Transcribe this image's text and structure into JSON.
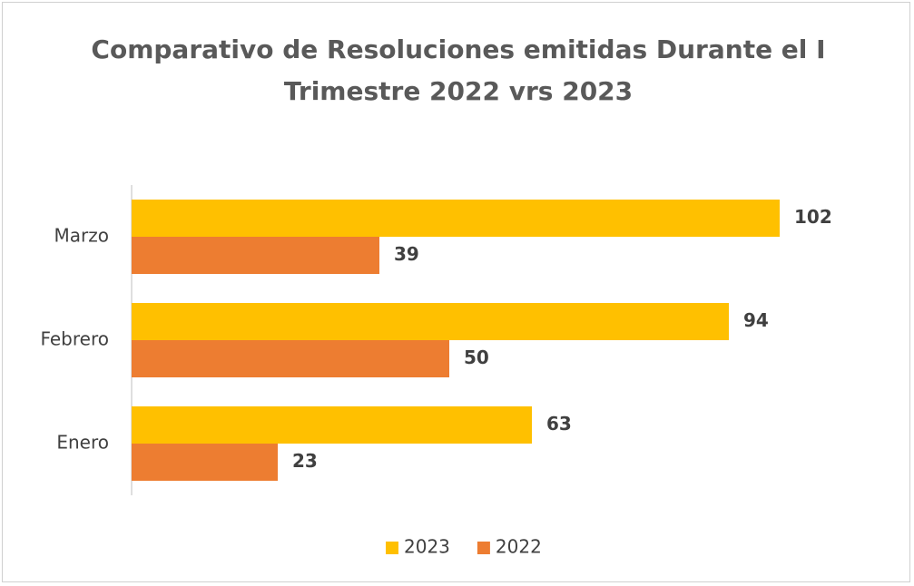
{
  "chart_data": {
    "type": "barh",
    "title": "Comparativo de Resoluciones emitidas Durante el I Trimestre 2022 vrs 2023",
    "categories": [
      "Enero",
      "Febrero",
      "Marzo"
    ],
    "series": [
      {
        "name": "2023",
        "color": "#ffc000",
        "values": [
          63,
          94,
          102
        ]
      },
      {
        "name": "2022",
        "color": "#ed7d31",
        "values": [
          23,
          50,
          39
        ]
      }
    ],
    "xlim": [
      0,
      120
    ],
    "legend": "bottom"
  }
}
